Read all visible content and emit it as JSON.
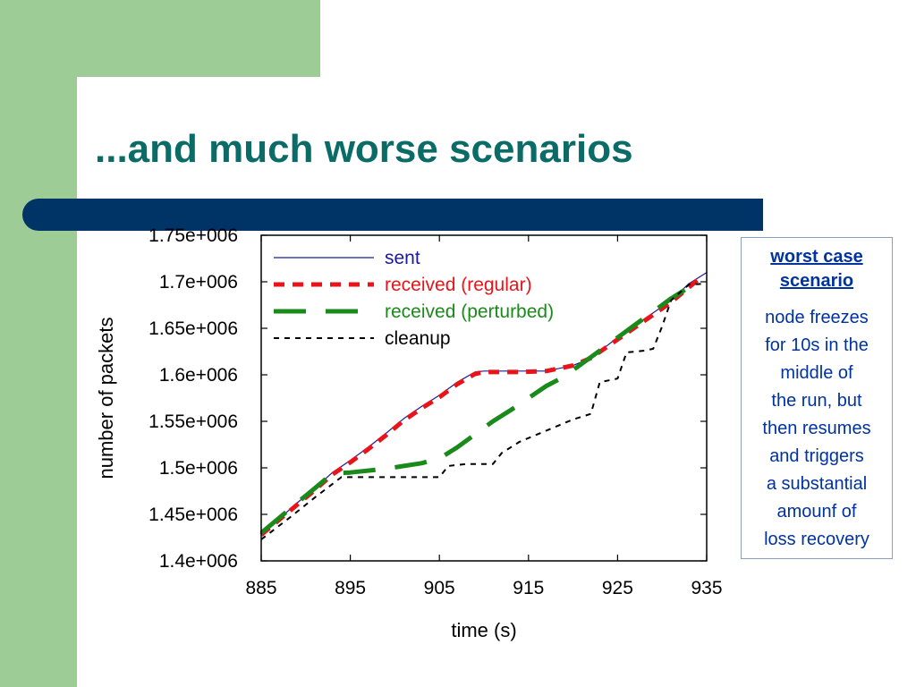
{
  "slide": {
    "title": "...and much worse scenarios",
    "colors": {
      "title": "#0b6b66",
      "bar": "#003366",
      "accent_green": "#9dcc97",
      "note_text": "#0033a0"
    }
  },
  "note": {
    "title_line1": "worst case",
    "title_line2": "scenario",
    "lines": [
      "node freezes",
      "for 10s in the",
      "middle of",
      "the run, but",
      "then resumes",
      "and triggers",
      "a substantial",
      "amounf of",
      "loss recovery"
    ]
  },
  "chart_data": {
    "type": "line",
    "title": "",
    "xlabel": "time (s)",
    "ylabel": "number of packets",
    "xlim": [
      885,
      935
    ],
    "ylim": [
      1400000,
      1750000
    ],
    "x_ticks": [
      885,
      895,
      905,
      915,
      925,
      935
    ],
    "x_tick_labels": [
      "885",
      "895",
      "905",
      "915",
      "925",
      "935"
    ],
    "y_ticks": [
      1400000,
      1450000,
      1500000,
      1550000,
      1600000,
      1650000,
      1700000,
      1750000
    ],
    "y_tick_labels": [
      "1.4e+006",
      "1.45e+006",
      "1.5e+006",
      "1.55e+006",
      "1.6e+006",
      "1.65e+006",
      "1.7e+006",
      "1.75e+006"
    ],
    "legend_position": "top-left",
    "series": [
      {
        "name": "sent",
        "color": "#1a1a9c",
        "style": "solid-thin",
        "points": [
          [
            885,
            1428000
          ],
          [
            887,
            1445000
          ],
          [
            889,
            1462000
          ],
          [
            891,
            1478000
          ],
          [
            893,
            1495000
          ],
          [
            895,
            1508000
          ],
          [
            897,
            1522000
          ],
          [
            899,
            1537000
          ],
          [
            901,
            1553000
          ],
          [
            903,
            1566000
          ],
          [
            905,
            1578000
          ],
          [
            907,
            1592000
          ],
          [
            909,
            1603000
          ],
          [
            910,
            1604000
          ],
          [
            912,
            1604000
          ],
          [
            915,
            1604000
          ],
          [
            917,
            1604000
          ],
          [
            920,
            1610000
          ],
          [
            922,
            1618000
          ],
          [
            925,
            1640000
          ],
          [
            928,
            1660000
          ],
          [
            931,
            1680000
          ],
          [
            933,
            1698000
          ],
          [
            935,
            1710000
          ]
        ]
      },
      {
        "name": "received (regular)",
        "color": "#e8141a",
        "style": "dashed-red",
        "points": [
          [
            885,
            1428000
          ],
          [
            887,
            1444000
          ],
          [
            889,
            1460000
          ],
          [
            891,
            1476000
          ],
          [
            893,
            1493000
          ],
          [
            895,
            1506000
          ],
          [
            897,
            1520000
          ],
          [
            899,
            1535000
          ],
          [
            901,
            1551000
          ],
          [
            903,
            1564000
          ],
          [
            905,
            1576000
          ],
          [
            907,
            1590000
          ],
          [
            909,
            1601000
          ],
          [
            910,
            1603000
          ],
          [
            914,
            1603000
          ],
          [
            917,
            1604000
          ],
          [
            920,
            1610000
          ],
          [
            922,
            1618000
          ],
          [
            925,
            1638000
          ],
          [
            928,
            1658000
          ],
          [
            931,
            1678000
          ],
          [
            934,
            1702000
          ]
        ]
      },
      {
        "name": "received (perturbed)",
        "color": "#1a8a1a",
        "style": "dashed-green",
        "points": [
          [
            885,
            1430000
          ],
          [
            887,
            1446000
          ],
          [
            889,
            1462000
          ],
          [
            891,
            1478000
          ],
          [
            893,
            1494000
          ],
          [
            895,
            1495000
          ],
          [
            897,
            1497000
          ],
          [
            899,
            1499000
          ],
          [
            901,
            1502000
          ],
          [
            903,
            1505000
          ],
          [
            905,
            1510000
          ],
          [
            907,
            1522000
          ],
          [
            909,
            1536000
          ],
          [
            911,
            1550000
          ],
          [
            913,
            1562000
          ],
          [
            915,
            1575000
          ],
          [
            917,
            1588000
          ],
          [
            919,
            1598000
          ],
          [
            921,
            1612000
          ],
          [
            923,
            1626000
          ],
          [
            925,
            1640000
          ],
          [
            927,
            1654000
          ],
          [
            929,
            1668000
          ],
          [
            931,
            1682000
          ],
          [
            933,
            1694000
          ],
          [
            934,
            1701000
          ]
        ]
      },
      {
        "name": "cleanup",
        "color": "#000000",
        "style": "dotted-black",
        "points": [
          [
            885,
            1423000
          ],
          [
            888,
            1445000
          ],
          [
            891,
            1468000
          ],
          [
            894,
            1490000
          ],
          [
            897,
            1490000
          ],
          [
            900,
            1490000
          ],
          [
            905,
            1490000
          ],
          [
            906,
            1502000
          ],
          [
            908,
            1504000
          ],
          [
            911,
            1504000
          ],
          [
            912,
            1516000
          ],
          [
            914,
            1528000
          ],
          [
            917,
            1540000
          ],
          [
            920,
            1552000
          ],
          [
            922,
            1558000
          ],
          [
            923,
            1592000
          ],
          [
            925,
            1596000
          ],
          [
            926,
            1624000
          ],
          [
            928,
            1626000
          ],
          [
            929,
            1628000
          ],
          [
            930,
            1652000
          ],
          [
            931,
            1680000
          ],
          [
            933,
            1697000
          ],
          [
            935,
            1698000
          ]
        ]
      }
    ]
  }
}
